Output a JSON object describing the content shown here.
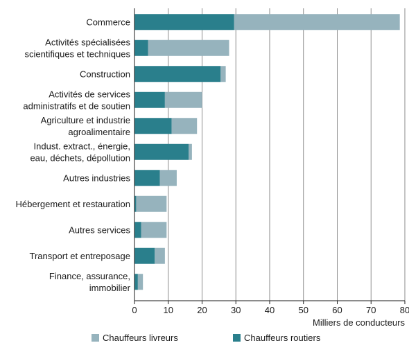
{
  "chart_data": {
    "type": "bar",
    "orientation": "horizontal",
    "stacked": true,
    "categories": [
      [
        "Commerce"
      ],
      [
        "Activités spécialisées",
        "scientifiques et techniques"
      ],
      [
        "Construction"
      ],
      [
        "Activités de services",
        "administratifs et de soutien"
      ],
      [
        "Agriculture et industrie",
        "agroalimentaire"
      ],
      [
        "Indust. extract., énergie,",
        "eau, déchets, dépollution"
      ],
      [
        "Autres industries"
      ],
      [
        "Hébergement et restauration"
      ],
      [
        "Autres services"
      ],
      [
        "Transport et entreposage"
      ],
      [
        "Finance, assurance,",
        "immobilier"
      ]
    ],
    "series": [
      {
        "name": "Chauffeurs routiers",
        "color": "#2a7f8c",
        "values": [
          29.5,
          4,
          25.5,
          9,
          11,
          16,
          7.5,
          0.5,
          2,
          6,
          1
        ]
      },
      {
        "name": "Chauffeurs livreurs",
        "color": "#96b3bd",
        "values": [
          49,
          24,
          1.5,
          11,
          7.5,
          1,
          5,
          9,
          7.5,
          3,
          1.5
        ]
      }
    ],
    "xlim": [
      0,
      80
    ],
    "xticks": [
      0,
      10,
      20,
      30,
      40,
      50,
      60,
      70,
      80
    ],
    "xlabel": "Milliers de conducteurs",
    "grid": "vertical",
    "legend": {
      "position": "bottom",
      "order": [
        "Chauffeurs livreurs",
        "Chauffeurs routiers"
      ]
    }
  }
}
